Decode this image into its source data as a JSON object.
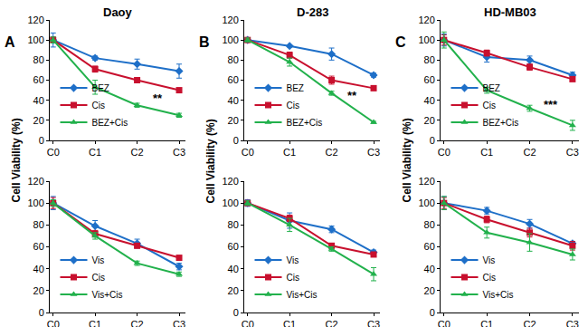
{
  "chart_data": [
    {
      "type": "line",
      "panel_label": "A",
      "title": "Daoy",
      "ylabel": "Cell Viability (%)",
      "categories": [
        "C0",
        "C1",
        "C2",
        "C3"
      ],
      "series": [
        {
          "name": "BEZ",
          "color": "#1e6fc8",
          "marker": "diamond",
          "values": [
            100,
            82,
            76,
            69
          ],
          "errors": [
            7,
            2,
            5,
            7
          ]
        },
        {
          "name": "Cis",
          "color": "#c8102e",
          "marker": "square",
          "values": [
            100,
            71,
            60,
            50
          ],
          "errors": [
            3,
            3,
            2,
            1
          ]
        },
        {
          "name": "BEZ+Cis",
          "color": "#22b14c",
          "marker": "triangle-up",
          "values": [
            100,
            53,
            35,
            25
          ],
          "errors": [
            3,
            7,
            2,
            2
          ]
        }
      ],
      "annotations": [
        {
          "text": "**"
        }
      ],
      "ylim": [
        0,
        120
      ],
      "yticks": [
        0,
        20,
        40,
        60,
        80,
        100,
        120
      ],
      "legend": "lower left"
    },
    {
      "type": "line",
      "categories": [
        "C0",
        "C1",
        "C2",
        "C3"
      ],
      "series": [
        {
          "name": "Vis",
          "color": "#1e6fc8",
          "marker": "diamond",
          "values": [
            100,
            79,
            63,
            42
          ],
          "errors": [
            6,
            5,
            4,
            3
          ]
        },
        {
          "name": "Cis",
          "color": "#c8102e",
          "marker": "square",
          "values": [
            100,
            72,
            61,
            50
          ],
          "errors": [
            5,
            3,
            2,
            1
          ]
        },
        {
          "name": "Vis+Cis",
          "color": "#22b14c",
          "marker": "triangle-up",
          "values": [
            100,
            70,
            45,
            35
          ],
          "errors": [
            3,
            3,
            2,
            2
          ]
        }
      ],
      "ylim": [
        0,
        120
      ],
      "yticks": [
        0,
        20,
        40,
        60,
        80,
        100,
        120
      ],
      "legend": "lower left"
    },
    {
      "type": "line",
      "panel_label": "B",
      "title": "D-283",
      "ylabel": "Cell Viability (%)",
      "categories": [
        "C0",
        "C1",
        "C2",
        "C3"
      ],
      "series": [
        {
          "name": "BEZ",
          "color": "#1e6fc8",
          "marker": "diamond",
          "values": [
            100,
            94,
            86,
            65
          ],
          "errors": [
            2,
            1,
            6,
            2
          ]
        },
        {
          "name": "Cis",
          "color": "#c8102e",
          "marker": "square",
          "values": [
            100,
            85,
            60,
            52
          ],
          "errors": [
            2,
            3,
            4,
            2
          ]
        },
        {
          "name": "BEZ+Cis",
          "color": "#22b14c",
          "marker": "triangle-up",
          "values": [
            100,
            78,
            47,
            18
          ],
          "errors": [
            2,
            4,
            2,
            1
          ]
        }
      ],
      "annotations": [
        {
          "text": "**"
        }
      ],
      "ylim": [
        0,
        120
      ],
      "yticks": [
        0,
        20,
        40,
        60,
        80,
        100,
        120
      ],
      "legend": "lower left"
    },
    {
      "type": "line",
      "categories": [
        "C0",
        "C1",
        "C2",
        "C3"
      ],
      "series": [
        {
          "name": "Vis",
          "color": "#1e6fc8",
          "marker": "diamond",
          "values": [
            100,
            84,
            76,
            55
          ],
          "errors": [
            3,
            7,
            3,
            2
          ]
        },
        {
          "name": "Cis",
          "color": "#c8102e",
          "marker": "square",
          "values": [
            100,
            86,
            61,
            53
          ],
          "errors": [
            2,
            3,
            2,
            2
          ]
        },
        {
          "name": "Vis+Cis",
          "color": "#22b14c",
          "marker": "triangle-up",
          "values": [
            100,
            80,
            58,
            35
          ],
          "errors": [
            2,
            6,
            2,
            6
          ]
        }
      ],
      "ylim": [
        0,
        120
      ],
      "yticks": [
        0,
        20,
        40,
        60,
        80,
        100,
        120
      ],
      "legend": "lower left"
    },
    {
      "type": "line",
      "panel_label": "C",
      "title": "HD-MB03",
      "ylabel": "Cell Viability (%)",
      "categories": [
        "C0",
        "C1",
        "C2",
        "C3"
      ],
      "series": [
        {
          "name": "BEZ",
          "color": "#1e6fc8",
          "marker": "diamond",
          "values": [
            100,
            83,
            80,
            65
          ],
          "errors": [
            6,
            5,
            4,
            3
          ]
        },
        {
          "name": "Cis",
          "color": "#c8102e",
          "marker": "square",
          "values": [
            100,
            87,
            73,
            61
          ],
          "errors": [
            5,
            3,
            3,
            2
          ]
        },
        {
          "name": "BEZ+Cis",
          "color": "#22b14c",
          "marker": "triangle-up",
          "values": [
            100,
            50,
            32,
            15
          ],
          "errors": [
            8,
            3,
            3,
            5
          ]
        }
      ],
      "annotations": [
        {
          "text": "***"
        }
      ],
      "ylim": [
        0,
        120
      ],
      "yticks": [
        0,
        20,
        40,
        60,
        80,
        100,
        120
      ],
      "legend": "lower left"
    },
    {
      "type": "line",
      "categories": [
        "C0",
        "C1",
        "C2",
        "C3"
      ],
      "series": [
        {
          "name": "Vis",
          "color": "#1e6fc8",
          "marker": "diamond",
          "values": [
            100,
            93,
            81,
            63
          ],
          "errors": [
            6,
            3,
            4,
            2
          ]
        },
        {
          "name": "Cis",
          "color": "#c8102e",
          "marker": "square",
          "values": [
            100,
            85,
            73,
            61
          ],
          "errors": [
            5,
            3,
            4,
            4
          ]
        },
        {
          "name": "Vis+Cis",
          "color": "#22b14c",
          "marker": "triangle-up",
          "values": [
            100,
            73,
            64,
            53
          ],
          "errors": [
            6,
            5,
            8,
            5
          ]
        }
      ],
      "ylim": [
        0,
        120
      ],
      "yticks": [
        0,
        20,
        40,
        60,
        80,
        100,
        120
      ],
      "legend": "lower left"
    }
  ]
}
